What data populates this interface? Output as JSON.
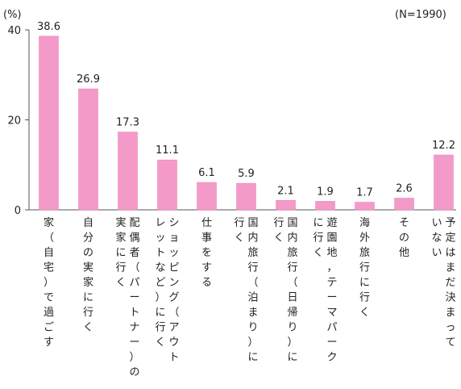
{
  "chart_data": {
    "type": "bar",
    "unit_label": "(%)",
    "note": "(N=1990)",
    "categories": [
      [
        "家（自宅）で過ごす"
      ],
      [
        "自分の実家に行く"
      ],
      [
        "配偶者（パートナー）の",
        "実家に行く"
      ],
      [
        "ショッピング（アウト",
        "レットなど）に行く"
      ],
      [
        "仕事をする"
      ],
      [
        "国内旅行（泊まり）に",
        "行く"
      ],
      [
        "国内旅行（日帰り）に",
        "行く"
      ],
      [
        "遊園地，テーマパーク",
        "に行く"
      ],
      [
        "海外旅行に行く"
      ],
      [
        "その他"
      ],
      [
        "予定はまだ決まって",
        "いない"
      ]
    ],
    "values": [
      38.6,
      26.9,
      17.3,
      11.1,
      6.1,
      5.9,
      2.1,
      1.9,
      1.7,
      2.6,
      12.2
    ],
    "value_labels": [
      "38.6",
      "26.9",
      "17.3",
      "11.1",
      "6.1",
      "5.9",
      "2.1",
      "1.9",
      "1.7",
      "2.6",
      "12.2"
    ],
    "yticks": [
      "0",
      "20",
      "40"
    ],
    "ylim": [
      0,
      40
    ],
    "bar_color": "#f49ac8",
    "bar_edge_color": "#e87fb6",
    "axis_color": "#555555",
    "grid": false
  }
}
